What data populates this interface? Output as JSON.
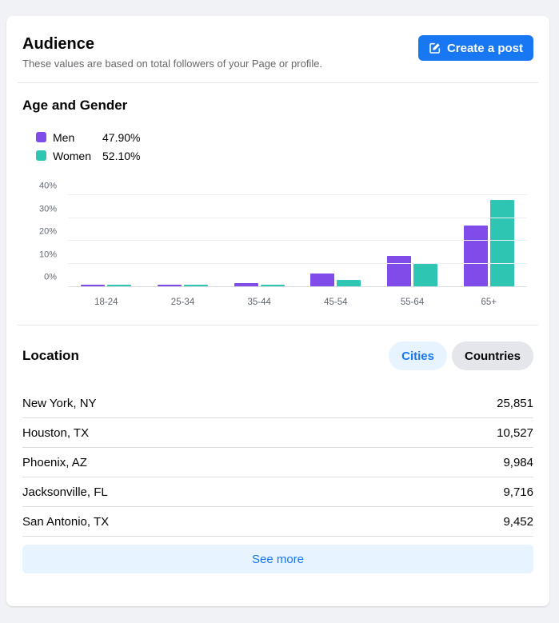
{
  "header": {
    "title": "Audience",
    "subtitle": "These values are based on total followers of your Page or profile.",
    "create_post_label": "Create a post"
  },
  "age_gender": {
    "title": "Age and Gender",
    "legend": [
      {
        "label": "Men",
        "value": "47.90%"
      },
      {
        "label": "Women",
        "value": "52.10%"
      }
    ]
  },
  "location": {
    "title": "Location",
    "tabs": [
      {
        "label": "Cities",
        "active": true
      },
      {
        "label": "Countries",
        "active": false
      }
    ],
    "rows": [
      {
        "name": "New York, NY",
        "value": "25,851"
      },
      {
        "name": "Houston, TX",
        "value": "10,527"
      },
      {
        "name": "Phoenix, AZ",
        "value": "9,984"
      },
      {
        "name": "Jacksonville, FL",
        "value": "9,716"
      },
      {
        "name": "San Antonio, TX",
        "value": "9,452"
      }
    ],
    "see_more_label": "See more"
  },
  "colors": {
    "men": "#7F4CE9",
    "women": "#2FC5B3",
    "accent_blue": "#1877F2",
    "pill_active_bg": "#E7F3FF",
    "pill_inactive_bg": "#E4E6EB",
    "page_bg": "#F0F2F5",
    "card_bg": "#FFFFFF"
  },
  "chart_data": {
    "type": "bar",
    "title": "Age and Gender",
    "categories": [
      "18-24",
      "25-34",
      "35-44",
      "45-54",
      "55-64",
      "65+"
    ],
    "series": [
      {
        "name": "Men",
        "color": "#7F4CE9",
        "total_share": "47.90%",
        "values": [
          0.3,
          0.7,
          1.4,
          5.5,
          13.2,
          26.8
        ]
      },
      {
        "name": "Women",
        "color": "#2FC5B3",
        "total_share": "52.10%",
        "values": [
          0.2,
          0.5,
          0.8,
          2.7,
          10.0,
          37.9
        ]
      }
    ],
    "value_unit": "percent of followers",
    "ylim": [
      0,
      45
    ],
    "yticks": [
      0,
      10,
      20,
      30,
      40
    ],
    "ytick_labels": [
      "0%",
      "10%",
      "20%",
      "30%",
      "40%"
    ],
    "grid": true,
    "legend_position": "top-left"
  }
}
